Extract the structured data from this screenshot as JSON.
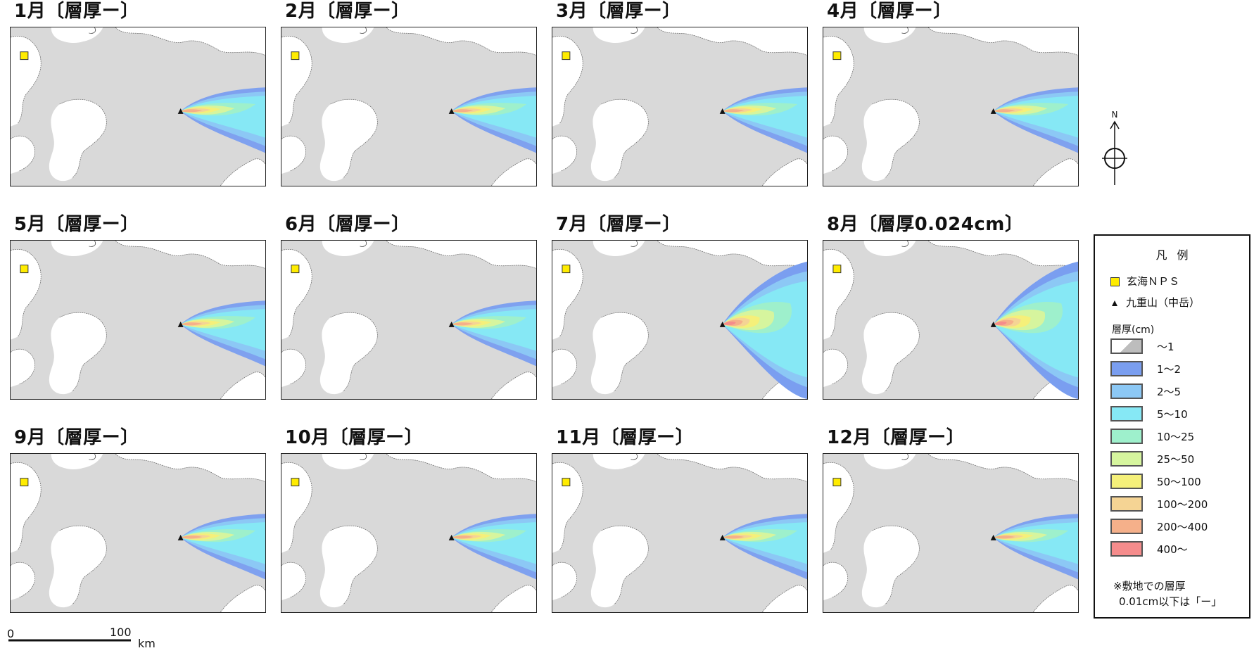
{
  "panels": [
    {
      "title": "1月〔層厚ー〕"
    },
    {
      "title": "2月〔層厚ー〕"
    },
    {
      "title": "3月〔層厚ー〕"
    },
    {
      "title": "4月〔層厚ー〕"
    },
    {
      "title": "5月〔層厚ー〕"
    },
    {
      "title": "6月〔層厚ー〕"
    },
    {
      "title": "7月〔層厚ー〕"
    },
    {
      "title": "8月〔層厚0.024cm〕"
    },
    {
      "title": "9月〔層厚ー〕"
    },
    {
      "title": "10月〔層厚ー〕"
    },
    {
      "title": "11月〔層厚ー〕"
    },
    {
      "title": "12月〔層厚ー〕"
    }
  ],
  "compass": {
    "north_label": "N"
  },
  "legend": {
    "title": "凡例",
    "nps_label": "玄海ＮＰＳ",
    "volcano_label": "九重山（中岳）",
    "thickness_header": "層厚(cm)",
    "classes": [
      {
        "label": "～1",
        "color": "#f2f2f2"
      },
      {
        "label": "1～2",
        "color": "#7a9ef0"
      },
      {
        "label": "2～5",
        "color": "#8cc8f5"
      },
      {
        "label": "5～10",
        "color": "#86e8f5"
      },
      {
        "label": "10～25",
        "color": "#9ef0cc"
      },
      {
        "label": "25～50",
        "color": "#d6f59e"
      },
      {
        "label": "50～100",
        "color": "#f5f07a"
      },
      {
        "label": "100～200",
        "color": "#f5d494"
      },
      {
        "label": "200～400",
        "color": "#f5b08a"
      },
      {
        "label": "400～",
        "color": "#f58c8c"
      }
    ],
    "note_line1": "※敷地での層厚",
    "note_line2": "0.01cm以下は「ー」"
  },
  "scale": {
    "zero_label": "0",
    "max_label": "100",
    "unit": "km"
  },
  "colors": {
    "land": "#d9d9d9",
    "sea": "#ffffff",
    "nps_marker": "#ffec00",
    "border": "#222222"
  }
}
